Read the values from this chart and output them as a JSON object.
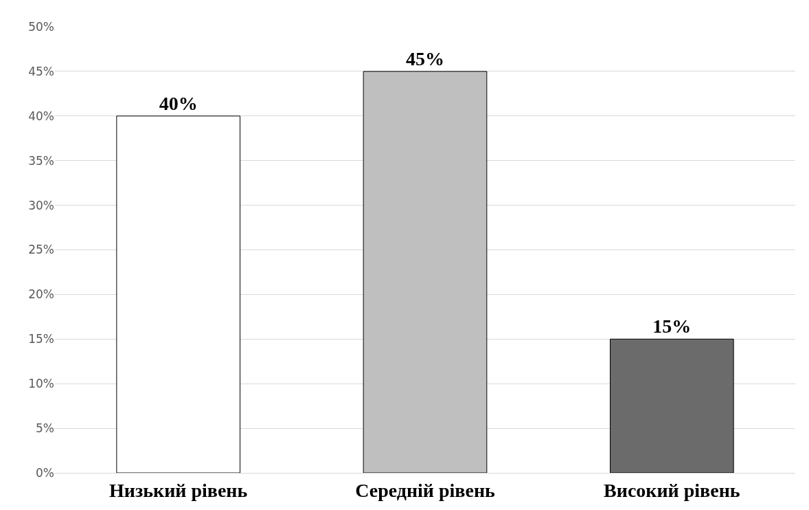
{
  "chart_data": {
    "type": "bar",
    "categories": [
      "Низький рівень",
      "Середній рівень",
      "Високий рівень"
    ],
    "values": [
      40,
      45,
      15
    ],
    "colors": [
      "#ffffff",
      "#bfbfbf",
      "#6b6b6b"
    ],
    "value_labels": [
      "40%",
      "45%",
      "15%"
    ],
    "ylim": [
      0,
      50
    ],
    "yticks": [
      {
        "value": 0,
        "label": "0%"
      },
      {
        "value": 5,
        "label": "5%"
      },
      {
        "value": 10,
        "label": "10%"
      },
      {
        "value": 15,
        "label": "15%"
      },
      {
        "value": 20,
        "label": "20%"
      },
      {
        "value": 25,
        "label": "25%"
      },
      {
        "value": 30,
        "label": "30%"
      },
      {
        "value": 35,
        "label": "35%"
      },
      {
        "value": 40,
        "label": "40%"
      },
      {
        "value": 45,
        "label": "45%"
      },
      {
        "value": 50,
        "label": "50%"
      }
    ],
    "grid": "y"
  }
}
